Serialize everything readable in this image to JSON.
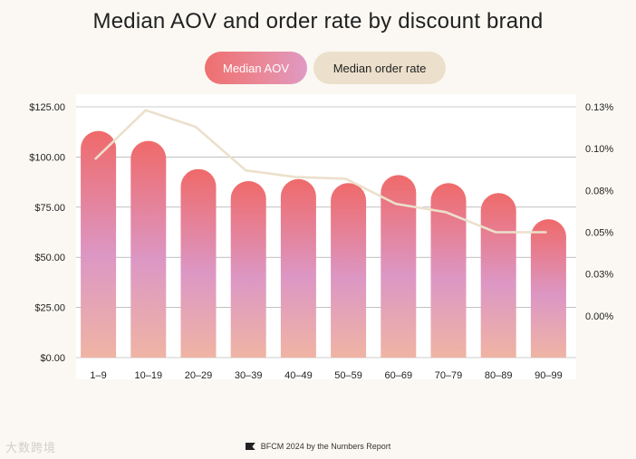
{
  "chart_data": {
    "type": "bar",
    "title": "Median AOV and order rate by discount brand",
    "categories": [
      "1–9",
      "10–19",
      "20–29",
      "30–39",
      "40–49",
      "50–59",
      "60–69",
      "70–79",
      "80–89",
      "90–99"
    ],
    "series": [
      {
        "name": "Median AOV",
        "type": "bar",
        "axis": "left",
        "values": [
          113,
          108,
          94,
          88,
          89,
          87,
          91,
          87,
          82,
          69
        ]
      },
      {
        "name": "Median order rate",
        "type": "line",
        "axis": "right",
        "values": [
          0.094,
          0.123,
          0.113,
          0.087,
          0.083,
          0.082,
          0.067,
          0.062,
          0.05,
          0.05
        ]
      }
    ],
    "y_left": {
      "ylim": [
        0,
        125
      ],
      "ticks": [
        0,
        25,
        50,
        75,
        100,
        125
      ],
      "tick_labels": [
        "$0.00",
        "$25.00",
        "$50.00",
        "$75.00",
        "$100.00",
        "$125.00"
      ]
    },
    "y_right": {
      "ylim": [
        -0.025,
        0.125
      ],
      "ticks": [
        0,
        0.025,
        0.05,
        0.075,
        0.1,
        0.125
      ],
      "tick_labels": [
        "0.00%",
        "0.03%",
        "0.05%",
        "0.08%",
        "0.10%",
        "0.13%"
      ]
    },
    "grid": "horizontal",
    "legend_position": "top-center",
    "colors": {
      "bar_top": "#ef6a6a",
      "bar_mid": "#dc97c4",
      "bar_bottom": "#efb4a4",
      "line": "#ece0cc",
      "grid": "#9a9a9a",
      "plot_bg": "#ffffff",
      "page_bg": "#fbf8f3"
    }
  },
  "legend": {
    "aov_label": "Median AOV",
    "rate_label": "Median order rate"
  },
  "footer": {
    "text": "BFCM 2024 by the Numbers Report",
    "icon": "brand-flag-icon"
  },
  "watermark": {
    "text": "大数跨境"
  }
}
